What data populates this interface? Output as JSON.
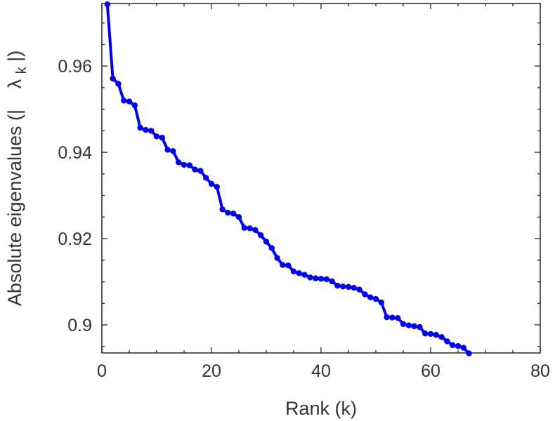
{
  "chart_data": {
    "type": "line",
    "title": "",
    "xlabel": "Rank (k)",
    "ylabel": "Absolute eigenvalues (|λk|)",
    "ylabel_parts": {
      "prefix": "Absolute eigenvalues (|",
      "symbol": "λ",
      "subscript": "k",
      "suffix": "|)"
    },
    "xlim": [
      0,
      80
    ],
    "ylim": [
      0.8935,
      0.9745
    ],
    "xticks": [
      0,
      20,
      40,
      60,
      80
    ],
    "xtick_labels": [
      "0",
      "20",
      "40",
      "60",
      "80"
    ],
    "yticks": [
      0.9,
      0.92,
      0.94,
      0.96
    ],
    "ytick_labels": [
      "0.9",
      "0.92",
      "0.94",
      "0.96"
    ],
    "grid": false,
    "series": [
      {
        "color": "#0000ee",
        "marker": "circle",
        "x": [
          1,
          2,
          3,
          4,
          5,
          6,
          7,
          8,
          9,
          10,
          11,
          12,
          13,
          14,
          15,
          16,
          17,
          18,
          19,
          20,
          21,
          22,
          23,
          24,
          25,
          26,
          27,
          28,
          29,
          30,
          31,
          32,
          33,
          34,
          35,
          36,
          37,
          38,
          39,
          40,
          41,
          42,
          43,
          44,
          45,
          46,
          47,
          48,
          49,
          50,
          51,
          52,
          53,
          54,
          55,
          56,
          57,
          58,
          59,
          60,
          61,
          62,
          63,
          64,
          65,
          66,
          67
        ],
        "y": [
          0.9743,
          0.9571,
          0.9559,
          0.952,
          0.9518,
          0.9509,
          0.9457,
          0.9452,
          0.945,
          0.9437,
          0.9434,
          0.9406,
          0.9403,
          0.9377,
          0.9371,
          0.937,
          0.936,
          0.9357,
          0.9341,
          0.9327,
          0.932,
          0.9268,
          0.926,
          0.9258,
          0.925,
          0.9225,
          0.9224,
          0.922,
          0.9208,
          0.9193,
          0.9178,
          0.9155,
          0.9139,
          0.9138,
          0.9124,
          0.912,
          0.9116,
          0.911,
          0.9108,
          0.9107,
          0.9106,
          0.9101,
          0.9091,
          0.9089,
          0.9088,
          0.9086,
          0.9082,
          0.9071,
          0.9064,
          0.906,
          0.9052,
          0.9018,
          0.9017,
          0.9016,
          0.9002,
          0.8999,
          0.8997,
          0.8995,
          0.898,
          0.8979,
          0.8977,
          0.8972,
          0.8962,
          0.8953,
          0.8951,
          0.8947,
          0.8934
        ]
      }
    ]
  }
}
